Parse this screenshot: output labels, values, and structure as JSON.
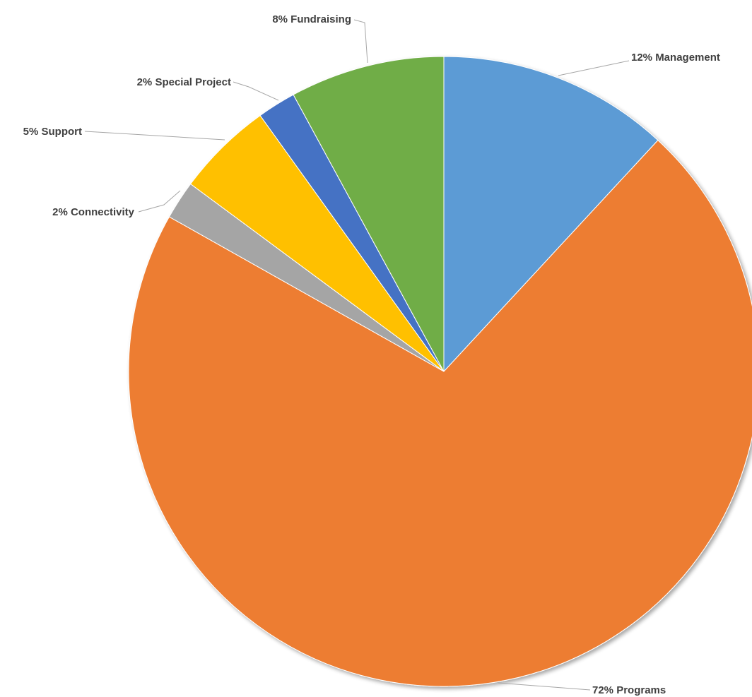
{
  "chart_data": {
    "type": "pie",
    "title": "",
    "start_angle_deg": 0,
    "direction": "clockwise",
    "legend": "none",
    "slices": [
      {
        "category": "Management",
        "value": 12,
        "label": "12% Management",
        "color": "#5B9BD5"
      },
      {
        "category": "Programs",
        "value": 72,
        "label": "72% Programs",
        "color": "#ED7D31"
      },
      {
        "category": "Connectivity",
        "value": 2,
        "label": "2% Connectivity",
        "color": "#A5A5A5"
      },
      {
        "category": "Support",
        "value": 5,
        "label": "5% Support",
        "color": "#FFC000"
      },
      {
        "category": "Special Project",
        "value": 2,
        "label": "2% Special Project",
        "color": "#4472C4"
      },
      {
        "category": "Fundraising",
        "value": 8,
        "label": "8% Fundraising",
        "color": "#70AD47"
      }
    ]
  }
}
